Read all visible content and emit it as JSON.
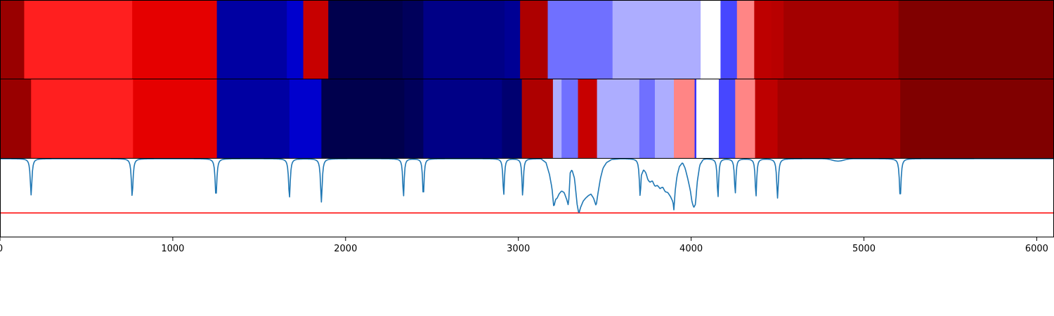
{
  "chart_data": [
    {
      "type": "heatmap",
      "colormap": "seismic",
      "x_range": [
        0,
        6100
      ],
      "value_range": [
        0,
        1
      ],
      "segments": [
        {
          "x0": 0,
          "x1": 140,
          "v": 0.95
        },
        {
          "x0": 140,
          "x1": 765,
          "v": 0.72
        },
        {
          "x0": 765,
          "x1": 1255,
          "v": 0.8
        },
        {
          "x0": 1255,
          "x1": 1660,
          "v": 0.12
        },
        {
          "x0": 1660,
          "x1": 1755,
          "v": 0.18
        },
        {
          "x0": 1755,
          "x1": 1900,
          "v": 0.86
        },
        {
          "x0": 1900,
          "x1": 2330,
          "v": 0.0
        },
        {
          "x0": 2330,
          "x1": 2450,
          "v": 0.02
        },
        {
          "x0": 2450,
          "x1": 2920,
          "v": 0.08
        },
        {
          "x0": 2920,
          "x1": 3010,
          "v": 0.1
        },
        {
          "x0": 3010,
          "x1": 3170,
          "v": 0.91
        },
        {
          "x0": 3170,
          "x1": 3545,
          "v": 0.36
        },
        {
          "x0": 3545,
          "x1": 4055,
          "v": 0.42
        },
        {
          "x0": 4055,
          "x1": 4170,
          "v": 0.5
        },
        {
          "x0": 4170,
          "x1": 4265,
          "v": 0.32
        },
        {
          "x0": 4265,
          "x1": 4365,
          "v": 0.62
        },
        {
          "x0": 4365,
          "x1": 4465,
          "v": 0.88
        },
        {
          "x0": 4465,
          "x1": 4535,
          "v": 0.89
        },
        {
          "x0": 4535,
          "x1": 5200,
          "v": 0.93
        },
        {
          "x0": 5200,
          "x1": 6100,
          "v": 1.0
        }
      ]
    },
    {
      "type": "heatmap",
      "colormap": "seismic",
      "x_range": [
        0,
        6100
      ],
      "value_range": [
        0,
        1
      ],
      "segments": [
        {
          "x0": 0,
          "x1": 180,
          "v": 0.95
        },
        {
          "x0": 180,
          "x1": 770,
          "v": 0.72
        },
        {
          "x0": 770,
          "x1": 1255,
          "v": 0.8
        },
        {
          "x0": 1255,
          "x1": 1675,
          "v": 0.12
        },
        {
          "x0": 1675,
          "x1": 1860,
          "v": 0.18
        },
        {
          "x0": 1860,
          "x1": 2340,
          "v": 0.0
        },
        {
          "x0": 2340,
          "x1": 2450,
          "v": 0.02
        },
        {
          "x0": 2450,
          "x1": 2905,
          "v": 0.08
        },
        {
          "x0": 2905,
          "x1": 3020,
          "v": 0.05
        },
        {
          "x0": 3020,
          "x1": 3200,
          "v": 0.91
        },
        {
          "x0": 3200,
          "x1": 3250,
          "v": 0.42
        },
        {
          "x0": 3250,
          "x1": 3345,
          "v": 0.36
        },
        {
          "x0": 3345,
          "x1": 3455,
          "v": 0.86
        },
        {
          "x0": 3455,
          "x1": 3700,
          "v": 0.42
        },
        {
          "x0": 3700,
          "x1": 3790,
          "v": 0.36
        },
        {
          "x0": 3790,
          "x1": 3900,
          "v": 0.42
        },
        {
          "x0": 3900,
          "x1": 4020,
          "v": 0.62
        },
        {
          "x0": 4020,
          "x1": 4030,
          "v": 0.3
        },
        {
          "x0": 4030,
          "x1": 4160,
          "v": 0.5
        },
        {
          "x0": 4160,
          "x1": 4255,
          "v": 0.32
        },
        {
          "x0": 4255,
          "x1": 4370,
          "v": 0.62
        },
        {
          "x0": 4370,
          "x1": 4500,
          "v": 0.88
        },
        {
          "x0": 4500,
          "x1": 5210,
          "v": 0.93
        },
        {
          "x0": 5210,
          "x1": 6100,
          "v": 1.0
        }
      ]
    },
    {
      "type": "line",
      "x_range": [
        0,
        6100
      ],
      "y_range": [
        0,
        1
      ],
      "xticks": [
        0,
        1000,
        2000,
        3000,
        4000,
        5000,
        6000
      ],
      "xtick_labels": [
        "0",
        "1000",
        "2000",
        "3000",
        "4000",
        "5000",
        "6000"
      ],
      "series_color": "#1f77b4",
      "threshold": {
        "y": 0.31,
        "color": "#ff0000"
      },
      "baseline": 1.0,
      "sharp_dips": [
        {
          "x": 180,
          "y": 0.54,
          "w": 14
        },
        {
          "x": 765,
          "y": 0.52,
          "w": 14
        },
        {
          "x": 1250,
          "y": 0.51,
          "w": 14
        },
        {
          "x": 1675,
          "y": 0.5,
          "w": 14
        },
        {
          "x": 1860,
          "y": 0.45,
          "w": 14
        },
        {
          "x": 2335,
          "y": 0.51,
          "w": 12
        },
        {
          "x": 2450,
          "y": 0.51,
          "w": 12
        },
        {
          "x": 2915,
          "y": 0.53,
          "w": 12
        },
        {
          "x": 3025,
          "y": 0.52,
          "w": 12
        },
        {
          "x": 4155,
          "y": 0.5,
          "w": 12
        },
        {
          "x": 4255,
          "y": 0.55,
          "w": 12
        },
        {
          "x": 4375,
          "y": 0.51,
          "w": 12
        },
        {
          "x": 4500,
          "y": 0.5,
          "w": 14
        },
        {
          "x": 5210,
          "y": 0.5,
          "w": 14
        },
        {
          "x": 3705,
          "y": 0.52,
          "w": 14
        }
      ],
      "broad_dips": [
        {
          "x": 4850,
          "y": 0.97,
          "w": 45
        }
      ],
      "noisy_region_points": [
        [
          3130,
          1.0
        ],
        [
          3160,
          0.95
        ],
        [
          3180,
          0.8
        ],
        [
          3195,
          0.62
        ],
        [
          3205,
          0.38
        ],
        [
          3215,
          0.48
        ],
        [
          3225,
          0.5
        ],
        [
          3235,
          0.55
        ],
        [
          3250,
          0.59
        ],
        [
          3265,
          0.57
        ],
        [
          3280,
          0.48
        ],
        [
          3290,
          0.4
        ],
        [
          3300,
          0.82
        ],
        [
          3310,
          0.86
        ],
        [
          3325,
          0.75
        ],
        [
          3340,
          0.42
        ],
        [
          3350,
          0.3
        ],
        [
          3360,
          0.38
        ],
        [
          3375,
          0.46
        ],
        [
          3390,
          0.5
        ],
        [
          3405,
          0.53
        ],
        [
          3420,
          0.55
        ],
        [
          3435,
          0.5
        ],
        [
          3450,
          0.4
        ],
        [
          3460,
          0.55
        ],
        [
          3475,
          0.75
        ],
        [
          3490,
          0.88
        ],
        [
          3510,
          0.95
        ],
        [
          3540,
          0.99
        ],
        [
          3600,
          1.0
        ],
        [
          3660,
          1.0
        ],
        [
          3690,
          0.98
        ],
        [
          3700,
          0.9
        ],
        [
          3712,
          0.79
        ],
        [
          3725,
          0.86
        ],
        [
          3738,
          0.82
        ],
        [
          3750,
          0.73
        ],
        [
          3762,
          0.7
        ],
        [
          3775,
          0.72
        ],
        [
          3790,
          0.65
        ],
        [
          3805,
          0.66
        ],
        [
          3820,
          0.62
        ],
        [
          3835,
          0.64
        ],
        [
          3850,
          0.58
        ],
        [
          3865,
          0.57
        ],
        [
          3880,
          0.52
        ],
        [
          3895,
          0.45
        ],
        [
          3900,
          0.35
        ],
        [
          3908,
          0.6
        ],
        [
          3918,
          0.78
        ],
        [
          3932,
          0.9
        ],
        [
          3950,
          0.95
        ],
        [
          3965,
          0.88
        ],
        [
          3980,
          0.75
        ],
        [
          3995,
          0.6
        ],
        [
          4005,
          0.45
        ],
        [
          4015,
          0.38
        ],
        [
          4025,
          0.42
        ],
        [
          4035,
          0.7
        ],
        [
          4050,
          0.92
        ],
        [
          4070,
          0.99
        ],
        [
          4100,
          1.0
        ]
      ]
    }
  ]
}
